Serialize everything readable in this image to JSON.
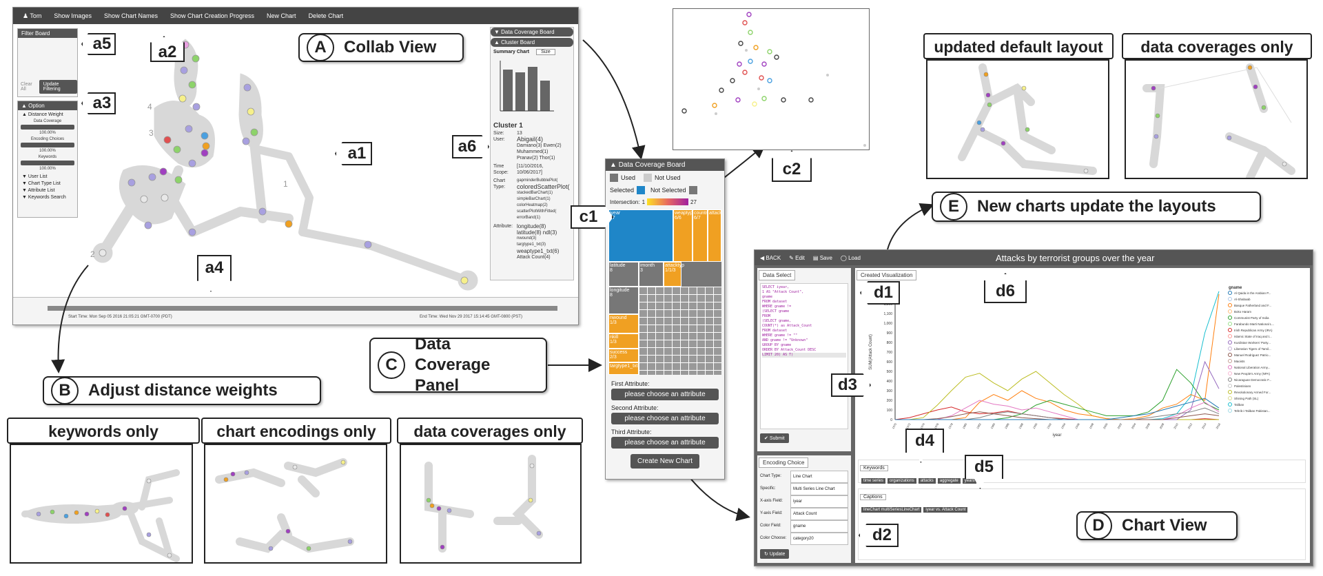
{
  "collab": {
    "menu": [
      "Tom",
      "Show Images",
      "Show Chart Names",
      "Show Chart Creation Progress",
      "New Chart",
      "Delete Chart"
    ],
    "filter_board": "Filter Board",
    "clear_all": "Clear All",
    "update_filtering": "Update Filtering",
    "option": "Option",
    "distance_weight": "Distance Weight",
    "sliders": [
      {
        "label": "Data Coverage",
        "value": "100.00%"
      },
      {
        "label": "Encoding Choices",
        "value": "100.00%"
      },
      {
        "label": "Keywords",
        "value": "100.00%"
      }
    ],
    "lists": [
      "User List",
      "Chart Type List",
      "Attribute List",
      "Keywords Search"
    ],
    "start_time": "Start Time: Mon Sep 05 2016 21:05:21 GMT-0700 (PDT)",
    "end_time": "End Time: Wed Nov 29 2017 15:14:45 GMT-0800 (PST)",
    "right_panel": {
      "data_coverage_board": "Data Coverage Board",
      "cluster_board": "Cluster Board",
      "summary_chart": "Summary Chart",
      "summary_select": "Size",
      "cluster_title": "Cluster 1",
      "size_label": "Size:",
      "size_value": "13",
      "user_label": "User:",
      "users": [
        "Abigail(4)",
        "Damiano(3) Ewen(2)",
        "Muhammed(1)",
        "Pranav(2) Thor(1)"
      ],
      "time_scope_label": "Time Scope:",
      "time_scope": [
        "[11/10/2016,",
        "10/06/2017]"
      ],
      "chart_type_label": "Chart Type:",
      "chart_types": [
        "gapminderBubblePlot(",
        "coloredScatterPlot(",
        "stackedBarChart(1)",
        "simpleBarChart(1)",
        "colorHeatmap(2)",
        "scatterPlotWithFitted(",
        "errorBand(1)"
      ],
      "attribute_label": "Attribute:",
      "attributes": [
        "longitude(8)",
        "latitude(8) ndl(3)",
        "nwound(3)",
        "targtype1_txt(3)",
        "weaptype1_txt(6)",
        "Attack Count(4)"
      ]
    },
    "graph_labels": [
      "4",
      "3",
      "1",
      "2"
    ]
  },
  "callouts": {
    "A": "A",
    "A_text": "Collab View",
    "B": "B",
    "B_text": "Adjust distance weights",
    "C": "C",
    "C_text": "Data Coverage Panel",
    "D": "D",
    "D_text": "Chart View",
    "E": "E",
    "E_text": "New charts update the layouts",
    "a1": "a1",
    "a2": "a2",
    "a3": "a3",
    "a4": "a4",
    "a5": "a5",
    "a6": "a6",
    "c1": "c1",
    "c2": "c2",
    "d1": "d1",
    "d2": "d2",
    "d3": "d3",
    "d4": "d4",
    "d5": "d5",
    "d6": "d6"
  },
  "thumbs": {
    "keywords_only": "keywords only",
    "chart_encodings_only": "chart encodings only",
    "data_coverages_only_1": "data coverages only",
    "updated_default_layout": "updated default layout",
    "data_coverages_only_2": "data coverages only"
  },
  "dcb": {
    "title": "Data Coverage Board",
    "used": "Used",
    "not_used": "Not Used",
    "selected": "Selected",
    "not_selected": "Not Selected",
    "intersection": "Intersection:",
    "int_min": "1",
    "int_max": "27",
    "cells": [
      {
        "label": "iyear",
        "sub": "27"
      },
      {
        "label": "weaptype",
        "sub": "6/6"
      },
      {
        "label": "country",
        "sub": "6/7"
      },
      {
        "label": "attack",
        "sub": ""
      },
      {
        "label": "latitude",
        "sub": "8"
      },
      {
        "label": "imonth",
        "sub": "3"
      },
      {
        "label": "attacktyp",
        "sub": "1/1/3"
      },
      {
        "label": "longitude",
        "sub": "8"
      },
      {
        "label": "nwound",
        "sub": "1/3"
      },
      {
        "label": "nkill",
        "sub": "1/3"
      },
      {
        "label": "success",
        "sub": "2/3"
      },
      {
        "label": "targtype1_txt",
        "sub": "1/3"
      }
    ],
    "first_attr": "First Attribute:",
    "second_attr": "Second Attribute:",
    "third_attr": "Third Attribute:",
    "choose": "please choose an attribute",
    "create_btn": "Create New Chart"
  },
  "chartview": {
    "toolbar": [
      "BACK",
      "Edit",
      "Save",
      "Load"
    ],
    "title": "Attacks by terrorist groups over the year",
    "data_select": "Data Select",
    "code": [
      "SELECT iyear,",
      "  1 AS \"Attack Count\",",
      "  gname",
      "FROM dataset",
      "WHERE gname !=",
      "(SELECT gname",
      "FROM",
      "(SELECT gname,",
      "COUNT(*) as Attack_Count",
      "FROM dataset",
      "WHERE gname != \"\"",
      "AND gname != \"Unknown\"",
      "GROUP BY gname",
      "ORDER BY Attack_Count DESC",
      "LIMIT 20) AS T)"
    ],
    "submit": "Submit",
    "created_viz": "Created Visualization",
    "encoding_choice": "Encoding Choice",
    "encodings": [
      {
        "label": "Chart Type:",
        "value": "Line Chart"
      },
      {
        "label": "Specific:",
        "value": "Multi Series Line Chart"
      },
      {
        "label": "X-axis Field:",
        "value": "iyear"
      },
      {
        "label": "Y-axis Field:",
        "value": "Attack Count"
      },
      {
        "label": "Color Field:",
        "value": "gname"
      },
      {
        "label": "Color Choose:",
        "value": "category20"
      }
    ],
    "update": "Update",
    "keywords": "Keywords",
    "kw_items": [
      "time series",
      "organizations",
      "attacks",
      "aggregate",
      "years"
    ],
    "captions": "Captions",
    "caption_items": [
      "lineChart multiSeriesLineChart",
      "iyear vs. Attack Count"
    ],
    "legend_title": "gname"
  },
  "chart_data": {
    "type": "line",
    "title": "",
    "xlabel": "iyear",
    "ylabel": "SUM(Attack Count)",
    "ylim": [
      0,
      1400
    ],
    "yticks": [
      "0",
      "100",
      "200",
      "300",
      "400",
      "500",
      "600",
      "700",
      "800",
      "900",
      "1,000",
      "1,100",
      "1,200",
      "1,300",
      "1,400"
    ],
    "x": [
      1970,
      1972,
      1974,
      1976,
      1978,
      1980,
      1982,
      1984,
      1986,
      1988,
      1990,
      1992,
      1994,
      1996,
      1998,
      2000,
      2002,
      2004,
      2006,
      2008,
      2010,
      2012,
      2014,
      2016
    ],
    "series": [
      {
        "color": "#17becf",
        "values": [
          0,
          0,
          0,
          0,
          0,
          0,
          0,
          0,
          0,
          0,
          0,
          0,
          0,
          0,
          0,
          0,
          0,
          0,
          0,
          10,
          60,
          240,
          900,
          1330
        ]
      },
      {
        "color": "#d62728",
        "values": [
          0,
          20,
          60,
          100,
          130,
          80,
          60,
          70,
          90,
          60,
          40,
          20,
          10,
          0,
          0,
          0,
          0,
          0,
          0,
          0,
          0,
          0,
          10,
          0
        ]
      },
      {
        "color": "#bcbd22",
        "values": [
          0,
          0,
          20,
          150,
          300,
          440,
          480,
          380,
          300,
          420,
          500,
          380,
          260,
          160,
          40,
          10,
          0,
          0,
          0,
          0,
          0,
          0,
          0,
          0
        ]
      },
      {
        "color": "#ff7f0e",
        "values": [
          0,
          0,
          0,
          0,
          0,
          20,
          180,
          260,
          200,
          300,
          220,
          180,
          100,
          60,
          40,
          10,
          0,
          10,
          40,
          120,
          160,
          260,
          200,
          1300
        ]
      },
      {
        "color": "#2ca02c",
        "values": [
          0,
          0,
          0,
          0,
          0,
          0,
          0,
          0,
          20,
          60,
          150,
          200,
          160,
          120,
          80,
          40,
          40,
          40,
          80,
          200,
          520,
          380,
          170,
          100
        ]
      },
      {
        "color": "#9467bd",
        "values": [
          0,
          0,
          0,
          0,
          0,
          0,
          0,
          0,
          0,
          0,
          0,
          0,
          0,
          0,
          0,
          0,
          0,
          0,
          0,
          0,
          0,
          100,
          600,
          320
        ]
      },
      {
        "color": "#e377c2",
        "values": [
          0,
          0,
          0,
          0,
          40,
          120,
          200,
          160,
          140,
          100,
          120,
          80,
          40,
          0,
          0,
          0,
          0,
          0,
          0,
          0,
          40,
          120,
          180,
          80
        ]
      },
      {
        "color": "#8c564b",
        "values": [
          0,
          0,
          0,
          10,
          30,
          60,
          80,
          60,
          40,
          20,
          10,
          0,
          0,
          0,
          0,
          0,
          0,
          0,
          0,
          0,
          20,
          40,
          60,
          40
        ]
      },
      {
        "color": "#7f7f7f",
        "values": [
          0,
          0,
          0,
          0,
          0,
          0,
          20,
          60,
          80,
          60,
          40,
          20,
          0,
          0,
          0,
          0,
          0,
          0,
          20,
          40,
          60,
          80,
          120,
          60
        ]
      },
      {
        "color": "#1f77b4",
        "values": [
          0,
          0,
          0,
          0,
          0,
          0,
          0,
          0,
          0,
          0,
          0,
          0,
          0,
          0,
          0,
          0,
          20,
          40,
          60,
          100,
          140,
          180,
          220,
          120
        ]
      }
    ],
    "legend": [
      "Al Qaida in the Arabian P...",
      "Al-Shabaab",
      "Basque Fatherland and F...",
      "Boko Haram",
      "Communist Party of India",
      "Farabundo Marti National L...",
      "Irish Republican Army (IRA)",
      "Islamic State of Iraq and t...",
      "Kurdistan Workers' Party...",
      "Liberation Tigers of Tamil...",
      "Manuel Rodriguez Patrio...",
      "Maoists",
      "National Liberation Army...",
      "New People's Army (NPA)",
      "Nicaraguan Democratic F...",
      "Palestinians",
      "Revolutionary Armed For...",
      "Shining Path (SL)",
      "Taliban",
      "Tehrik-i-Taliban Pakistan..."
    ]
  },
  "colors": {
    "used": "#777777",
    "unused": "#cccccc",
    "selected": "#1f86c8",
    "notselected": "#777777",
    "orange": "#f0a022",
    "dark": "#444444"
  }
}
